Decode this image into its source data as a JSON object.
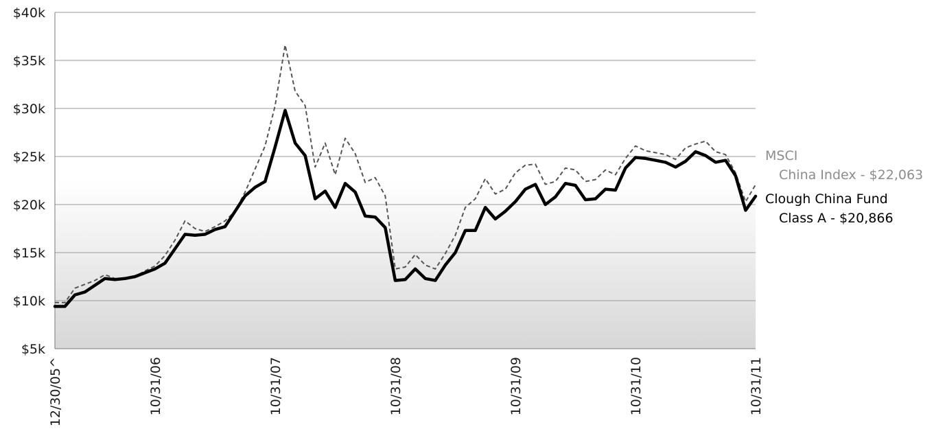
{
  "chart_data": {
    "type": "line",
    "title": "",
    "xlabel": "",
    "ylabel": "",
    "ylim": [
      5000,
      40000
    ],
    "yticks": [
      {
        "value": 40000,
        "label": "$40k"
      },
      {
        "value": 35000,
        "label": "$35k"
      },
      {
        "value": 30000,
        "label": "$30k"
      },
      {
        "value": 25000,
        "label": "$25k"
      },
      {
        "value": 20000,
        "label": "$20k"
      },
      {
        "value": 15000,
        "label": "$15k"
      },
      {
        "value": 10000,
        "label": "$10k"
      },
      {
        "value": 5000,
        "label": "$5k"
      }
    ],
    "xticks": [
      {
        "index": 0,
        "label": "12/30/05^"
      },
      {
        "index": 10,
        "label": "10/31/06"
      },
      {
        "index": 22,
        "label": "10/31/07"
      },
      {
        "index": 34,
        "label": "10/31/08"
      },
      {
        "index": 46,
        "label": "10/31/09"
      },
      {
        "index": 58,
        "label": "10/31/10"
      },
      {
        "index": 70,
        "label": "10/31/11"
      }
    ],
    "grid": true,
    "legend_placement": "right",
    "series": [
      {
        "name": "MSCI China Index",
        "label_lines": [
          "MSCI",
          "China Index - $22,063"
        ],
        "style": "dashed",
        "color": "#555555",
        "label_color": "#8c8c8c",
        "values": [
          9800,
          9800,
          11300,
          11700,
          12100,
          12700,
          12300,
          12300,
          12500,
          13100,
          13600,
          14700,
          16300,
          18300,
          17500,
          17200,
          17700,
          18300,
          19300,
          21300,
          23700,
          26100,
          30300,
          36600,
          31800,
          30300,
          23900,
          26400,
          23100,
          26900,
          25300,
          22300,
          22800,
          20900,
          13300,
          13500,
          14800,
          13700,
          13300,
          14900,
          16800,
          19700,
          20600,
          22700,
          21100,
          21600,
          23300,
          24100,
          24200,
          22100,
          22400,
          23800,
          23600,
          22400,
          22600,
          23600,
          23100,
          24800,
          26100,
          25600,
          25400,
          25200,
          24700,
          25900,
          26300,
          26600,
          25500,
          25200,
          23300,
          20300,
          22063
        ]
      },
      {
        "name": "Clough China Fund Class A",
        "label_lines": [
          "Clough China Fund",
          "Class A - $20,866"
        ],
        "style": "solid",
        "color": "#000000",
        "label_color": "#000000",
        "values": [
          9400,
          9400,
          10600,
          10900,
          11600,
          12300,
          12200,
          12300,
          12500,
          12900,
          13300,
          13900,
          15400,
          16900,
          16800,
          16900,
          17400,
          17700,
          19300,
          20900,
          21800,
          22400,
          26000,
          29800,
          26400,
          25100,
          20600,
          21400,
          19700,
          22200,
          21300,
          18800,
          18700,
          17600,
          12100,
          12200,
          13300,
          12300,
          12100,
          13700,
          15000,
          17300,
          17300,
          19700,
          18500,
          19300,
          20300,
          21600,
          22100,
          20000,
          20800,
          22200,
          22000,
          20500,
          20600,
          21600,
          21500,
          23800,
          24900,
          24800,
          24600,
          24400,
          23900,
          24500,
          25500,
          25100,
          24400,
          24600,
          23000,
          19400,
          20866
        ]
      }
    ]
  }
}
